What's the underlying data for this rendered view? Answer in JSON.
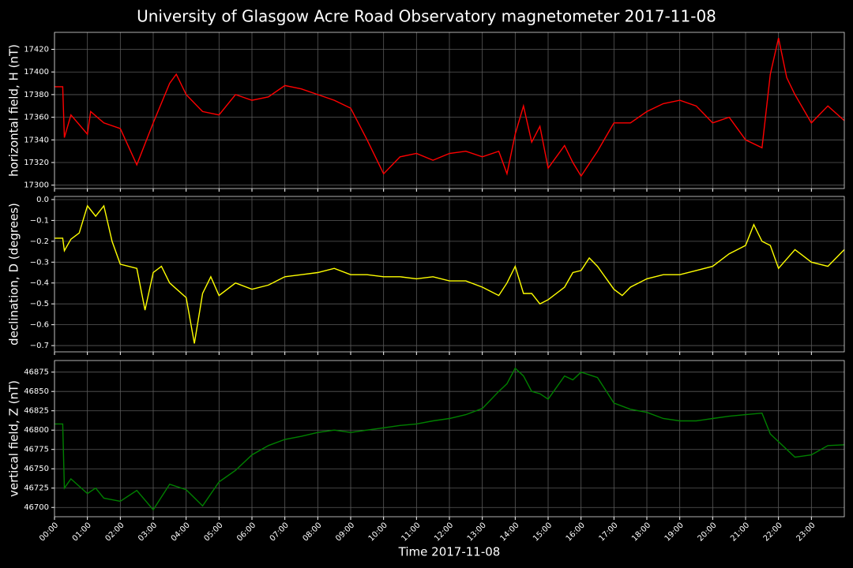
{
  "chart_data": [
    {
      "type": "line",
      "title": "University of Glasgow Acre Road Observatory magnetometer 2017-11-08",
      "y_label": "horizontal field, H (nT)",
      "color": "#ff0000",
      "grid": true,
      "xlim": [
        0,
        24
      ],
      "ylim": [
        17297,
        17435
      ],
      "yticks": [
        17300,
        17320,
        17340,
        17360,
        17380,
        17400,
        17420
      ],
      "x": [
        0,
        0.25,
        0.3,
        0.5,
        1.0,
        1.1,
        1.5,
        2.0,
        2.5,
        3.0,
        3.5,
        3.7,
        4.0,
        4.5,
        5.0,
        5.5,
        6.0,
        6.5,
        7.0,
        7.5,
        8.0,
        8.5,
        9.0,
        9.5,
        10.0,
        10.5,
        11.0,
        11.5,
        12.0,
        12.5,
        13.0,
        13.5,
        13.75,
        14.0,
        14.25,
        14.5,
        14.75,
        15.0,
        15.5,
        15.75,
        16.0,
        16.5,
        17.0,
        17.5,
        18.0,
        18.5,
        19.0,
        19.5,
        20.0,
        20.5,
        21.0,
        21.5,
        21.75,
        22.0,
        22.25,
        22.5,
        23.0,
        23.5,
        24.0
      ],
      "values": [
        17387,
        17387,
        17342,
        17362,
        17345,
        17365,
        17355,
        17350,
        17318,
        17355,
        17390,
        17398,
        17380,
        17365,
        17362,
        17380,
        17375,
        17378,
        17388,
        17385,
        17380,
        17375,
        17368,
        17340,
        17310,
        17325,
        17328,
        17322,
        17328,
        17330,
        17325,
        17330,
        17310,
        17345,
        17370,
        17338,
        17352,
        17315,
        17335,
        17320,
        17308,
        17330,
        17355,
        17355,
        17365,
        17372,
        17375,
        17370,
        17355,
        17360,
        17340,
        17333,
        17398,
        17430,
        17395,
        17380,
        17355,
        17370,
        17357
      ]
    },
    {
      "type": "line",
      "y_label": "declination, D (degrees)",
      "color": "#ffff00",
      "grid": true,
      "xlim": [
        0,
        24
      ],
      "ylim": [
        -0.73,
        0.015
      ],
      "yticks": [
        {
          "value": -0.7,
          "label": "−0.7"
        },
        {
          "value": -0.6,
          "label": "−0.6"
        },
        {
          "value": -0.5,
          "label": "−0.5"
        },
        {
          "value": -0.4,
          "label": "−0.4"
        },
        {
          "value": -0.3,
          "label": "−0.3"
        },
        {
          "value": -0.2,
          "label": "−0.2"
        },
        {
          "value": -0.1,
          "label": "−0.1"
        },
        {
          "value": 0,
          "label": "0.0"
        }
      ],
      "x": [
        0,
        0.25,
        0.3,
        0.5,
        0.75,
        1.0,
        1.25,
        1.5,
        1.75,
        2.0,
        2.5,
        2.75,
        3.0,
        3.25,
        3.5,
        4.0,
        4.25,
        4.5,
        4.75,
        5.0,
        5.5,
        6.0,
        6.5,
        7.0,
        7.5,
        8.0,
        8.5,
        9.0,
        9.5,
        10.0,
        10.5,
        11.0,
        11.5,
        12.0,
        12.5,
        13.0,
        13.5,
        13.75,
        14.0,
        14.25,
        14.5,
        14.75,
        15.0,
        15.5,
        15.75,
        16.0,
        16.25,
        16.5,
        17.0,
        17.25,
        17.5,
        18.0,
        18.5,
        19.0,
        19.5,
        20.0,
        20.5,
        21.0,
        21.25,
        21.5,
        21.75,
        22.0,
        22.5,
        23.0,
        23.5,
        24.0
      ],
      "values": [
        -0.185,
        -0.185,
        -0.245,
        -0.19,
        -0.16,
        -0.03,
        -0.08,
        -0.03,
        -0.2,
        -0.31,
        -0.33,
        -0.53,
        -0.35,
        -0.32,
        -0.4,
        -0.47,
        -0.69,
        -0.45,
        -0.37,
        -0.46,
        -0.4,
        -0.43,
        -0.41,
        -0.37,
        -0.36,
        -0.35,
        -0.33,
        -0.36,
        -0.36,
        -0.37,
        -0.37,
        -0.38,
        -0.37,
        -0.39,
        -0.39,
        -0.42,
        -0.46,
        -0.4,
        -0.32,
        -0.45,
        -0.45,
        -0.5,
        -0.48,
        -0.42,
        -0.35,
        -0.34,
        -0.28,
        -0.32,
        -0.43,
        -0.46,
        -0.42,
        -0.38,
        -0.36,
        -0.36,
        -0.34,
        -0.32,
        -0.26,
        -0.22,
        -0.12,
        -0.2,
        -0.22,
        -0.33,
        -0.24,
        -0.3,
        -0.32,
        -0.24
      ]
    },
    {
      "type": "line",
      "y_label": "vertical field, Z (nT)",
      "x_label": "Time 2017-11-08",
      "color": "#008000",
      "grid": true,
      "xlim": [
        0,
        24
      ],
      "ylim": [
        46688,
        46890
      ],
      "yticks": [
        46700,
        46725,
        46750,
        46775,
        46800,
        46825,
        46850,
        46875
      ],
      "xticks": [
        {
          "value": 0,
          "label": "00:00"
        },
        {
          "value": 1,
          "label": "01:00"
        },
        {
          "value": 2,
          "label": "02:00"
        },
        {
          "value": 3,
          "label": "03:00"
        },
        {
          "value": 4,
          "label": "04:00"
        },
        {
          "value": 5,
          "label": "05:00"
        },
        {
          "value": 6,
          "label": "06:00"
        },
        {
          "value": 7,
          "label": "07:00"
        },
        {
          "value": 8,
          "label": "08:00"
        },
        {
          "value": 9,
          "label": "09:00"
        },
        {
          "value": 10,
          "label": "10:00"
        },
        {
          "value": 11,
          "label": "11:00"
        },
        {
          "value": 12,
          "label": "12:00"
        },
        {
          "value": 13,
          "label": "13:00"
        },
        {
          "value": 14,
          "label": "14:00"
        },
        {
          "value": 15,
          "label": "15:00"
        },
        {
          "value": 16,
          "label": "16:00"
        },
        {
          "value": 17,
          "label": "17:00"
        },
        {
          "value": 18,
          "label": "18:00"
        },
        {
          "value": 19,
          "label": "19:00"
        },
        {
          "value": 20,
          "label": "20:00"
        },
        {
          "value": 21,
          "label": "21:00"
        },
        {
          "value": 22,
          "label": "22:00"
        },
        {
          "value": 23,
          "label": "23:00"
        }
      ],
      "x": [
        0,
        0.25,
        0.3,
        0.5,
        1.0,
        1.25,
        1.5,
        2.0,
        2.5,
        3.0,
        3.5,
        4.0,
        4.5,
        5.0,
        5.5,
        6.0,
        6.5,
        7.0,
        7.5,
        8.0,
        8.5,
        9.0,
        9.5,
        10.0,
        10.5,
        11.0,
        11.5,
        12.0,
        12.5,
        13.0,
        13.5,
        13.75,
        14.0,
        14.25,
        14.5,
        14.75,
        15.0,
        15.5,
        15.75,
        16.0,
        16.5,
        17.0,
        17.5,
        18.0,
        18.5,
        19.0,
        19.5,
        20.0,
        20.5,
        21.0,
        21.5,
        21.75,
        22.0,
        22.5,
        23.0,
        23.5,
        24.0
      ],
      "values": [
        46808,
        46808,
        46725,
        46737,
        46718,
        46725,
        46712,
        46708,
        46722,
        46697,
        46730,
        46723,
        46702,
        46733,
        46748,
        46768,
        46780,
        46788,
        46792,
        46797,
        46800,
        46797,
        46800,
        46803,
        46806,
        46808,
        46812,
        46815,
        46820,
        46828,
        46850,
        46860,
        46880,
        46870,
        46850,
        46847,
        46840,
        46870,
        46865,
        46875,
        46868,
        46835,
        46827,
        46823,
        46815,
        46812,
        46812,
        46815,
        46818,
        46820,
        46822,
        46795,
        46785,
        46765,
        46768,
        46780,
        46781
      ]
    }
  ]
}
